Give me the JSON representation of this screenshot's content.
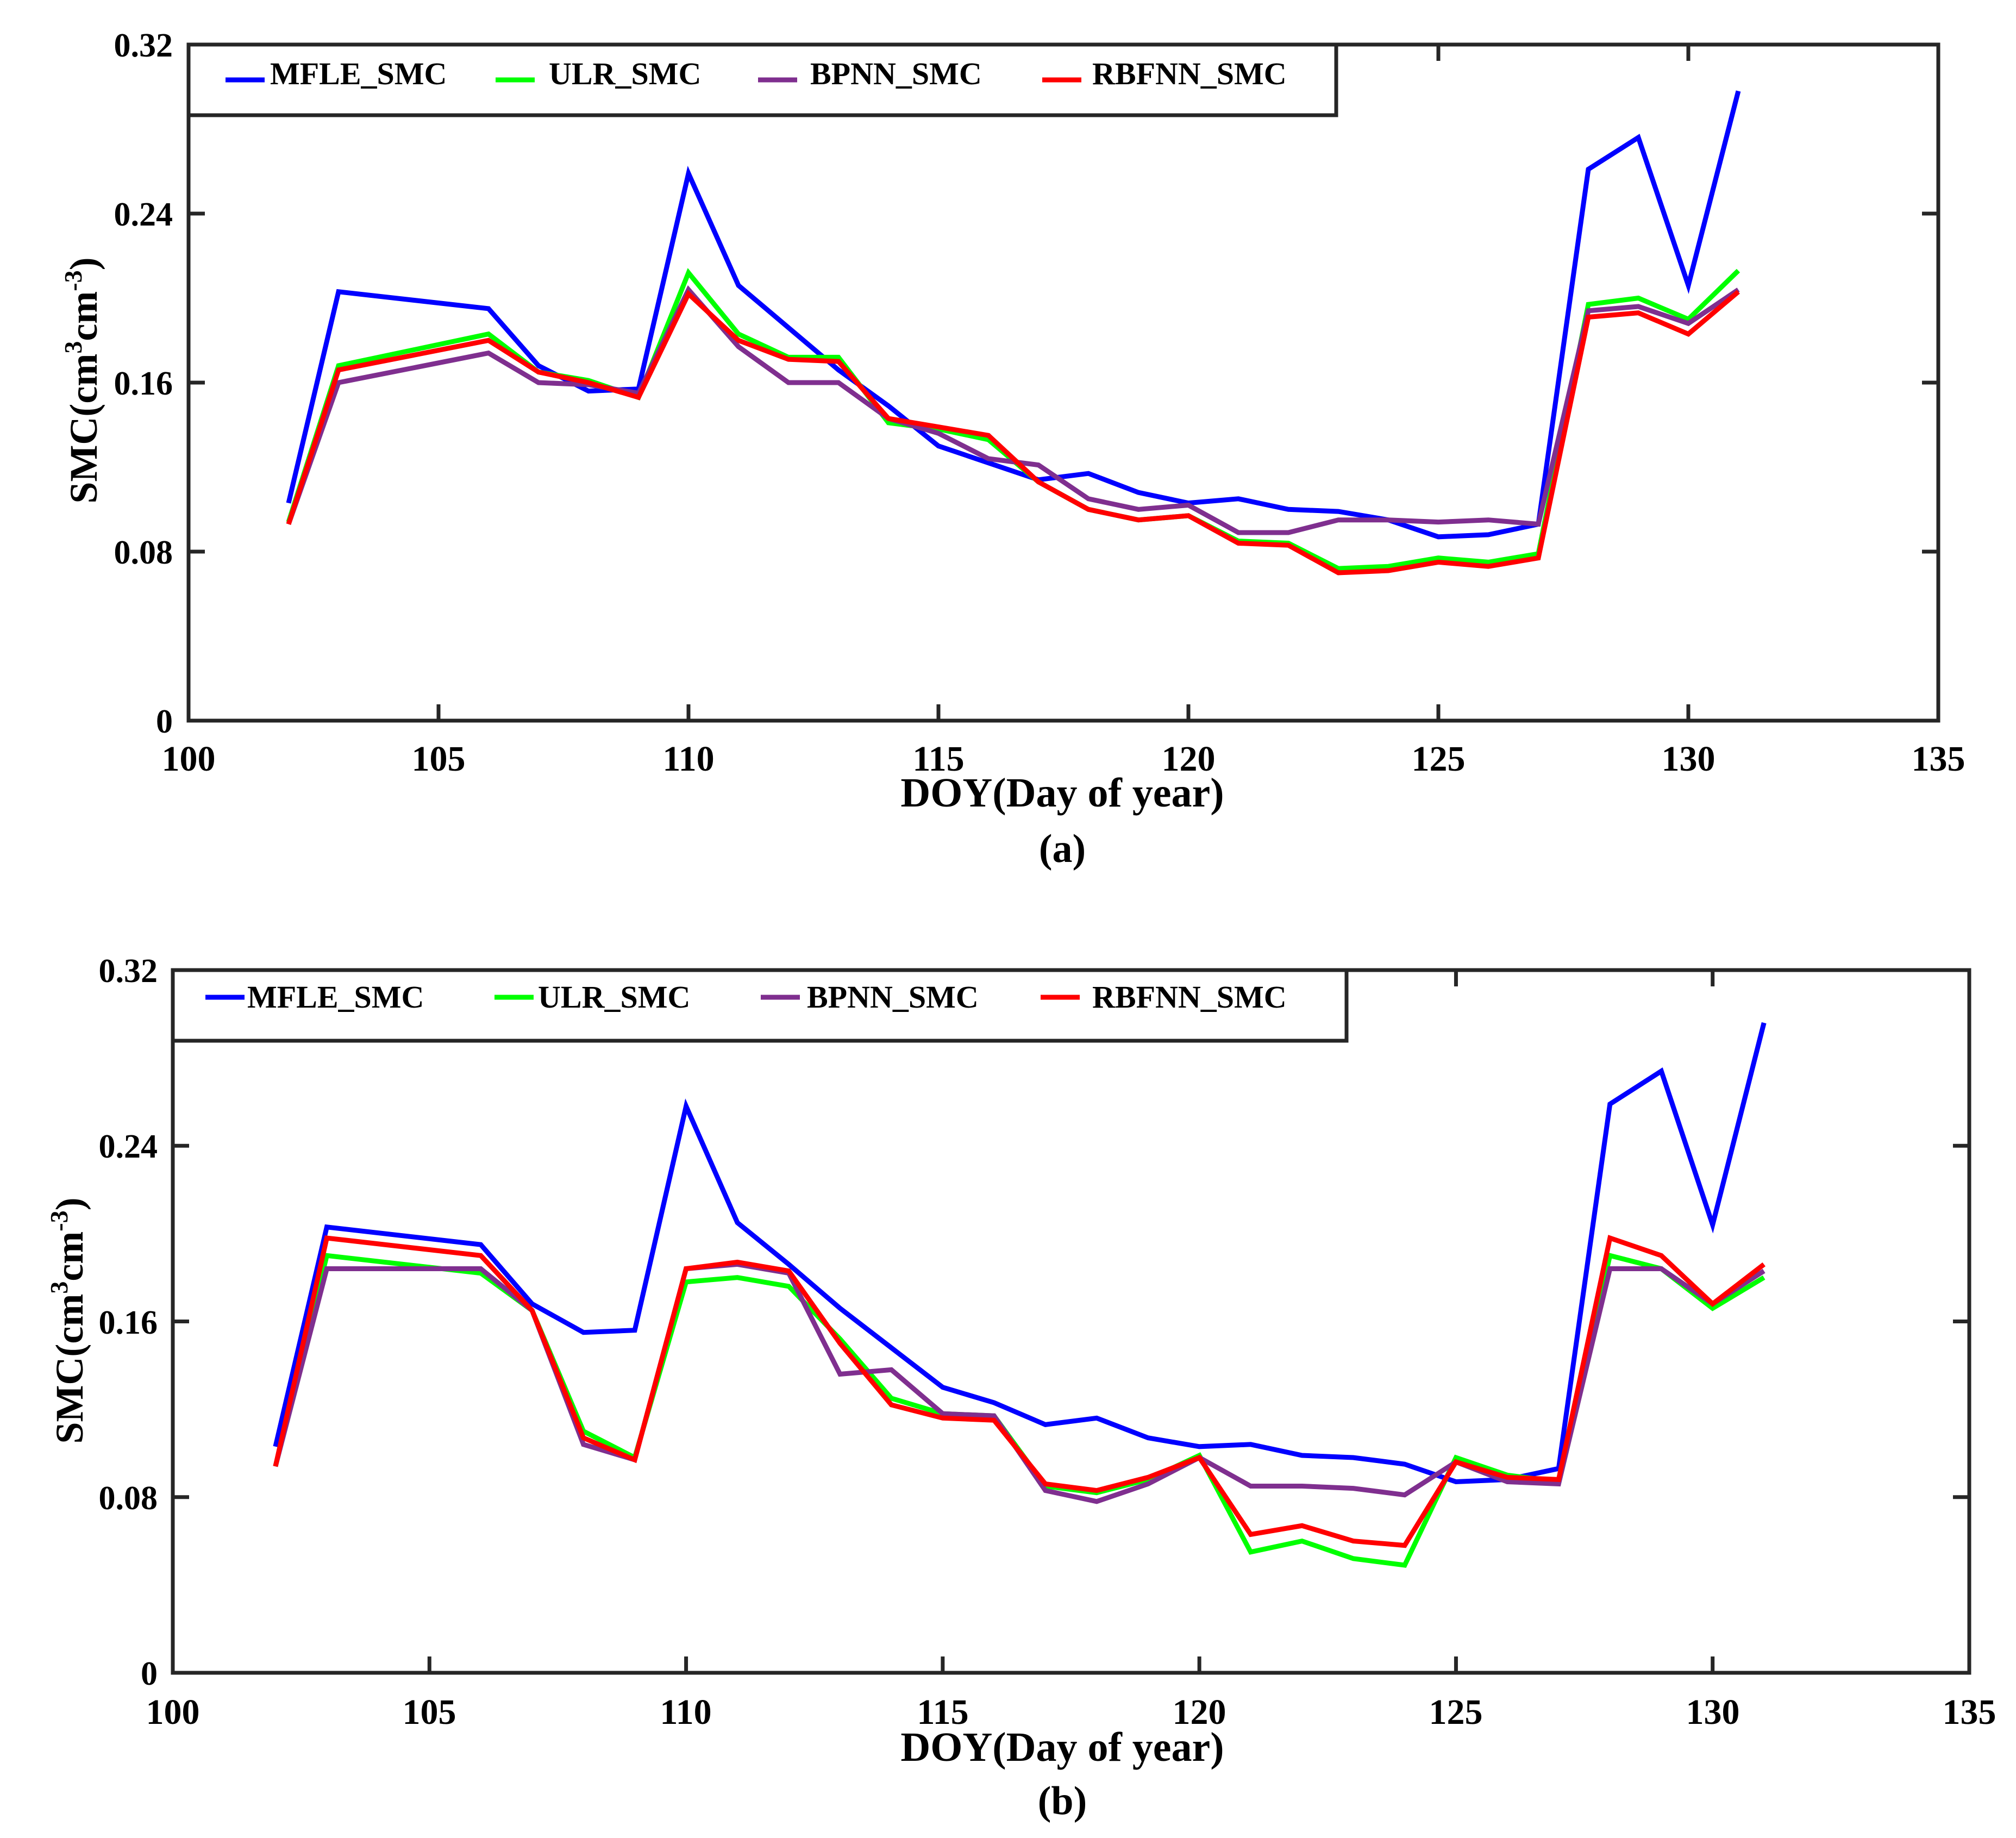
{
  "chart_data": [
    {
      "type": "line",
      "caption": "(a)",
      "title": "",
      "xlabel": "DOY(Day of year)",
      "ylabel": {
        "main": "SMC(cm",
        "sup1": "3",
        "mid": "cm",
        "sup2": "-3",
        "end": ")"
      },
      "xlim": [
        100,
        135
      ],
      "ylim": [
        0,
        0.32
      ],
      "xticks": [
        "100",
        "105",
        "110",
        "115",
        "120",
        "125",
        "130",
        "135"
      ],
      "yticks": [
        "0",
        "0.08",
        "0.16",
        "0.24",
        "0.32"
      ],
      "grid": false,
      "legend_position": "top-left",
      "x": [
        102,
        103,
        106,
        107,
        108,
        109,
        110,
        111,
        112,
        113,
        114,
        115,
        116,
        117,
        118,
        119,
        120,
        121,
        122,
        123,
        124,
        125,
        126,
        127,
        128,
        129,
        130,
        131
      ],
      "series": [
        {
          "name": "MFLE_SMC",
          "color": "#0000ff",
          "values": [
            0.103,
            0.203,
            0.195,
            0.168,
            0.156,
            0.157,
            0.259,
            0.206,
            0.186,
            0.166,
            0.149,
            0.13,
            0.122,
            0.114,
            0.117,
            0.108,
            0.103,
            0.105,
            0.1,
            0.099,
            0.095,
            0.087,
            0.088,
            0.093,
            0.261,
            0.276,
            0.206,
            0.298
          ]
        },
        {
          "name": "ULR_SMC",
          "color": "#00ff00",
          "values": [
            0.094,
            0.168,
            0.183,
            0.165,
            0.161,
            0.153,
            0.212,
            0.183,
            0.172,
            0.172,
            0.141,
            0.138,
            0.133,
            0.113,
            0.1,
            0.095,
            0.097,
            0.085,
            0.084,
            0.072,
            0.073,
            0.077,
            0.075,
            0.079,
            0.197,
            0.2,
            0.19,
            0.213
          ]
        },
        {
          "name": "BPNN_SMC",
          "color": "#7f2f8f",
          "values": [
            0.093,
            0.16,
            0.174,
            0.16,
            0.159,
            0.155,
            0.204,
            0.177,
            0.16,
            0.16,
            0.143,
            0.136,
            0.124,
            0.121,
            0.105,
            0.1,
            0.102,
            0.089,
            0.089,
            0.095,
            0.095,
            0.094,
            0.095,
            0.093,
            0.194,
            0.196,
            0.188,
            0.204
          ]
        },
        {
          "name": "RBFNN_SMC",
          "color": "#ff0000",
          "values": [
            0.093,
            0.166,
            0.18,
            0.165,
            0.16,
            0.153,
            0.202,
            0.18,
            0.171,
            0.17,
            0.143,
            0.139,
            0.135,
            0.113,
            0.1,
            0.095,
            0.097,
            0.084,
            0.083,
            0.07,
            0.071,
            0.075,
            0.073,
            0.077,
            0.191,
            0.193,
            0.183,
            0.203
          ]
        }
      ]
    },
    {
      "type": "line",
      "caption": "(b)",
      "title": "",
      "xlabel": "DOY(Day of year)",
      "ylabel": {
        "main": "SMC(cm",
        "sup1": "3",
        "mid": "cm",
        "sup2": "-3",
        "end": ")"
      },
      "xlim": [
        100,
        135
      ],
      "ylim": [
        0,
        0.32
      ],
      "xticks": [
        "100",
        "105",
        "110",
        "115",
        "120",
        "125",
        "130",
        "135"
      ],
      "yticks": [
        "0",
        "0.08",
        "0.16",
        "0.24",
        "0.32"
      ],
      "grid": false,
      "legend_position": "top-left",
      "x": [
        102,
        103,
        106,
        107,
        108,
        109,
        110,
        111,
        112,
        113,
        114,
        115,
        116,
        117,
        118,
        119,
        120,
        121,
        122,
        123,
        124,
        125,
        126,
        127,
        128,
        129,
        130,
        131
      ],
      "series": [
        {
          "name": "MFLE_SMC",
          "color": "#0000ff",
          "values": [
            0.103,
            0.203,
            0.195,
            0.168,
            0.155,
            0.156,
            0.258,
            0.205,
            0.186,
            0.166,
            0.148,
            0.13,
            0.123,
            0.113,
            0.116,
            0.107,
            0.103,
            0.104,
            0.099,
            0.098,
            0.095,
            0.087,
            0.088,
            0.093,
            0.259,
            0.274,
            0.204,
            0.296
          ]
        },
        {
          "name": "ULR_SMC",
          "color": "#00ff00",
          "values": [
            0.094,
            0.19,
            0.182,
            0.165,
            0.11,
            0.098,
            0.178,
            0.18,
            0.176,
            0.152,
            0.125,
            0.118,
            0.117,
            0.085,
            0.082,
            0.088,
            0.099,
            0.055,
            0.06,
            0.052,
            0.049,
            0.098,
            0.09,
            0.087,
            0.19,
            0.184,
            0.166,
            0.18
          ]
        },
        {
          "name": "BPNN_SMC",
          "color": "#7f2f8f",
          "values": [
            0.094,
            0.184,
            0.184,
            0.165,
            0.104,
            0.097,
            0.184,
            0.186,
            0.182,
            0.136,
            0.138,
            0.118,
            0.117,
            0.083,
            0.078,
            0.086,
            0.098,
            0.085,
            0.085,
            0.084,
            0.081,
            0.096,
            0.087,
            0.086,
            0.184,
            0.184,
            0.168,
            0.183
          ]
        },
        {
          "name": "RBFNN_SMC",
          "color": "#ff0000",
          "values": [
            0.094,
            0.198,
            0.19,
            0.165,
            0.107,
            0.097,
            0.184,
            0.187,
            0.183,
            0.15,
            0.122,
            0.116,
            0.115,
            0.086,
            0.083,
            0.089,
            0.098,
            0.063,
            0.067,
            0.06,
            0.058,
            0.096,
            0.089,
            0.088,
            0.198,
            0.19,
            0.168,
            0.186
          ]
        }
      ]
    }
  ]
}
